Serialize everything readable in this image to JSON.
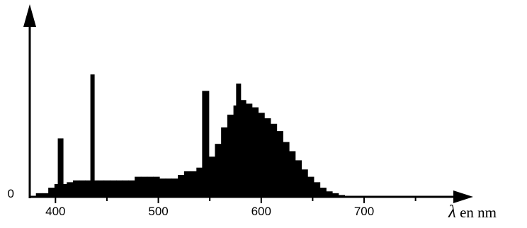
{
  "chart_data": {
    "type": "bar",
    "title": "",
    "xlabel_symbol": "λ",
    "xlabel_text": " en nm",
    "ylabel": "",
    "x_ticks": [
      400,
      500,
      600,
      700
    ],
    "x_minor_ticks": [
      450,
      550,
      650,
      750
    ],
    "y_ticks": [
      0
    ],
    "xlim": [
      375,
      795
    ],
    "ylim": [
      0,
      100
    ],
    "grid": false,
    "continuum": {
      "bin_width_nm": 6,
      "x": [
        384,
        390,
        396,
        402,
        408,
        414,
        420,
        426,
        432,
        438,
        444,
        450,
        456,
        462,
        468,
        474,
        480,
        486,
        492,
        498,
        504,
        510,
        516,
        522,
        528,
        534,
        540,
        546,
        552,
        558,
        564,
        570,
        576,
        582,
        588,
        594,
        600,
        606,
        612,
        618,
        624,
        630,
        636,
        642,
        648,
        654,
        660,
        666,
        672,
        678
      ],
      "values": [
        2,
        2,
        5,
        7,
        7,
        8,
        9,
        9,
        9,
        9,
        9,
        9,
        9,
        9,
        9,
        9,
        11,
        11,
        11,
        11,
        10,
        10,
        10,
        12,
        14,
        14,
        16,
        16,
        22,
        29,
        38,
        45,
        50,
        53,
        51,
        49,
        46,
        43,
        40,
        36,
        30,
        25,
        20,
        15,
        11,
        8,
        5,
        3,
        2,
        1
      ]
    },
    "lines": {
      "x": [
        405,
        436,
        546,
        578
      ],
      "values": [
        32,
        67,
        58,
        62
      ]
    }
  }
}
